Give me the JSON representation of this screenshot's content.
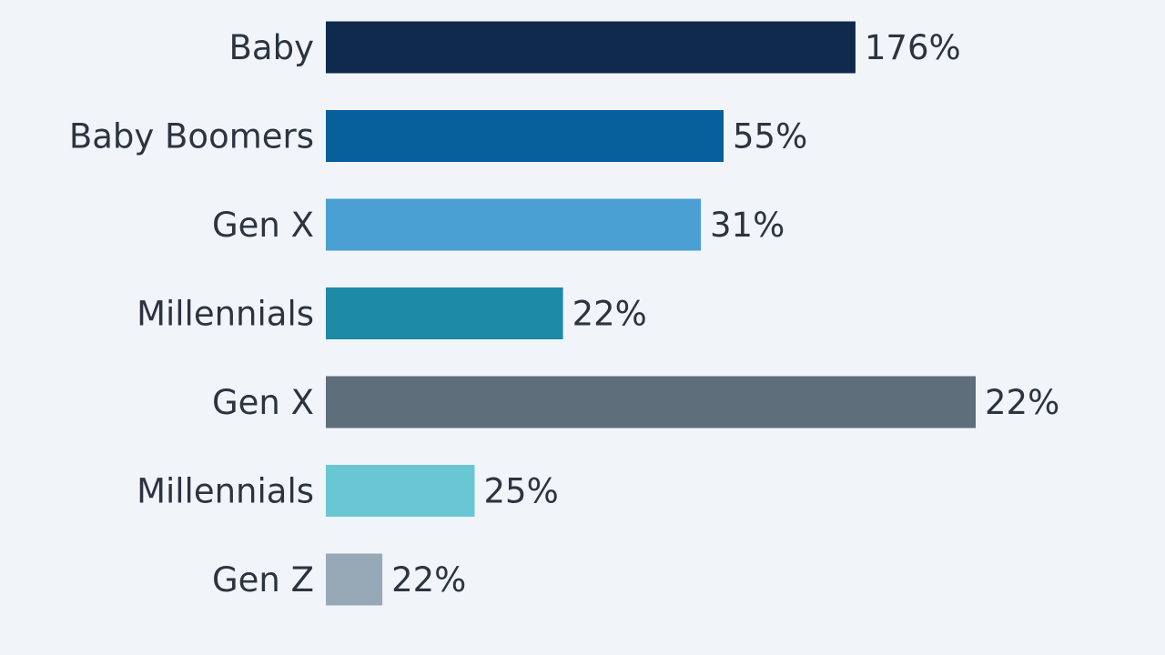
{
  "chart_data": {
    "type": "bar",
    "orientation": "horizontal",
    "categories": [
      "Baby",
      "Baby Boomers",
      "Gen X",
      "Millennials",
      "Gen X",
      "Millennials",
      "Gen Z"
    ],
    "value_labels": [
      "176%",
      "55%",
      "31%",
      "22%",
      "22%",
      "25%",
      "22%"
    ],
    "bar_fill_fraction": [
      0.815,
      0.612,
      0.577,
      0.365,
      1.0,
      0.229,
      0.087
    ],
    "colors": [
      "#0f2a4d",
      "#075f9c",
      "#4a9fd3",
      "#1d8aa6",
      "#5e6e7a",
      "#69c7d4",
      "#97a9b6"
    ],
    "grid": false,
    "legend": "none"
  }
}
